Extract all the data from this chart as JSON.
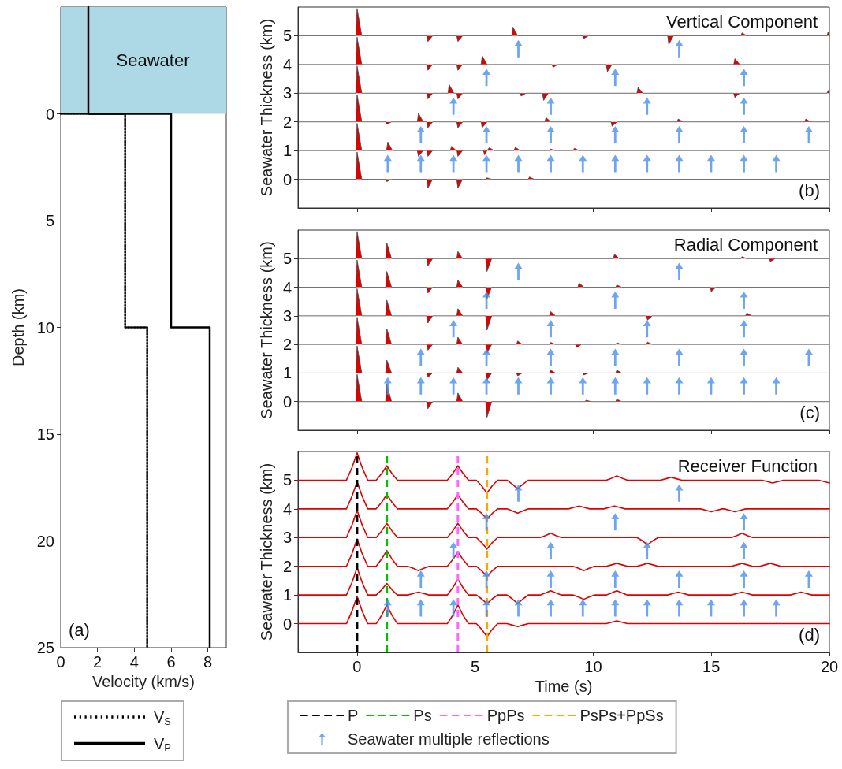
{
  "chart_data": [
    {
      "type": "line",
      "xlabel": "Velocity (km/s)",
      "ylabel": "Depth (km)",
      "xlim": [
        0,
        9
      ],
      "ylim": [
        25,
        -5
      ],
      "xticks": [
        0,
        2,
        4,
        6,
        8
      ],
      "yticks": [
        0,
        5,
        10,
        15,
        20,
        25
      ],
      "legend": "bottom",
      "annotations": [
        "(a)"
      ],
      "bands": [
        {
          "axis": "y",
          "from": -5,
          "to": 0,
          "label": "Seawater",
          "color": "#add8e6"
        }
      ],
      "series": [
        {
          "name": "V$_{S}$",
          "color": "#000000",
          "line_style": "dotted",
          "x": [
            0,
            3.5,
            3.5,
            4.7,
            4.7
          ],
          "values": [
            0,
            0,
            10,
            10,
            25
          ]
        },
        {
          "name": "V$_{P}$",
          "color": "#000000",
          "line_style": "solid",
          "x": [
            1.5,
            1.5,
            6,
            6,
            8.1,
            8.1
          ],
          "values": [
            -5,
            0,
            0,
            10,
            10,
            25
          ]
        }
      ]
    },
    {
      "type": "area",
      "title": "Vertical Component",
      "ylabel": "Seawater Thickness (km)",
      "xlim": [
        -2.5,
        20
      ],
      "ylim": [
        -1,
        6
      ],
      "xticks": [
        0,
        5,
        10,
        15,
        20
      ],
      "yticks": [
        0,
        1,
        2,
        3,
        4,
        5
      ],
      "tick_labels": "y",
      "annotations": [
        "(b)"
      ],
      "series": [
        {
          "color": "#e00000",
          "x": [
            -2.5,
            -0.05,
            0,
            0.2,
            1.21,
            1.26,
            1.46,
            2.95,
            3.0,
            3.2,
            4.22,
            4.27,
            4.47,
            5.45,
            5.5,
            5.7,
            7.25,
            7.3,
            7.5,
            20
          ],
          "values": [
            0,
            0,
            0.95,
            0,
            0,
            -0.08,
            0,
            0,
            -0.3,
            0,
            0,
            -0.3,
            0,
            0,
            0.05,
            0,
            0,
            0.08,
            0,
            0
          ]
        },
        {
          "color": "#e00000",
          "x": [
            -2.5,
            -0.05,
            0,
            0.2,
            1.25,
            1.3,
            1.5,
            2.55,
            2.6,
            2.8,
            2.95,
            3.0,
            3.2,
            3.95,
            4.0,
            4.2,
            4.23,
            4.27,
            4.47,
            5.35,
            5.4,
            5.5,
            5.6,
            5.8,
            6.65,
            6.7,
            6.9,
            8.15,
            8.2,
            8.4,
            9.15,
            9.2,
            9.4,
            20
          ],
          "values": [
            1,
            1,
            1.95,
            1,
            1,
            1.3,
            1,
            1,
            0.8,
            1,
            1,
            0.8,
            1,
            1,
            1.15,
            1,
            1,
            0.8,
            1,
            1,
            0.85,
            1,
            1.1,
            1,
            1,
            1.12,
            1,
            1,
            1.05,
            1,
            1,
            1.08,
            1,
            1
          ]
        },
        {
          "color": "#e00000",
          "x": [
            -2.5,
            -0.05,
            0,
            0.2,
            1.21,
            1.26,
            1.46,
            2.55,
            2.6,
            2.8,
            2.95,
            3.0,
            3.2,
            4.22,
            4.27,
            4.47,
            5.25,
            5.3,
            5.5,
            7.95,
            8.0,
            8.2,
            10.75,
            10.8,
            11.0,
            13.55,
            13.6,
            13.8,
            18.95,
            19.0,
            19.2,
            20
          ],
          "values": [
            2,
            2,
            2.95,
            2,
            2,
            1.92,
            2,
            2,
            2.3,
            2,
            2,
            1.8,
            2,
            2,
            1.8,
            2,
            2,
            1.8,
            2,
            2,
            2.15,
            2,
            2,
            1.85,
            2,
            2,
            2.1,
            2,
            2,
            2.1,
            2,
            2
          ]
        },
        {
          "color": "#e00000",
          "x": [
            -2.5,
            -0.05,
            0,
            0.2,
            2.95,
            3.0,
            3.2,
            3.85,
            3.9,
            4.1,
            4.22,
            4.27,
            4.47,
            6.9,
            6.95,
            7.15,
            7.85,
            7.9,
            8.1,
            11.85,
            11.9,
            12.1,
            15.95,
            16.0,
            16.2,
            19.9,
            19.95,
            20
          ],
          "values": [
            3,
            3,
            3.95,
            3,
            3,
            2.8,
            3,
            3,
            3.3,
            3,
            3,
            2.8,
            3,
            3,
            2.9,
            3,
            3,
            2.75,
            3,
            3,
            3.2,
            3,
            3,
            2.85,
            3,
            3,
            3.1,
            3
          ]
        },
        {
          "color": "#e00000",
          "x": [
            -2.5,
            -0.05,
            0,
            0.2,
            2.95,
            3.0,
            3.2,
            4.22,
            4.27,
            4.47,
            5.25,
            5.3,
            5.5,
            8.25,
            8.3,
            8.5,
            10.55,
            10.6,
            10.8,
            15.95,
            16.0,
            16.2,
            20
          ],
          "values": [
            4,
            4,
            4.95,
            4,
            4,
            3.8,
            4,
            4,
            3.8,
            4,
            4,
            4.3,
            4,
            4,
            3.9,
            4,
            4,
            3.75,
            4,
            4,
            4.2,
            4,
            4
          ]
        },
        {
          "color": "#e00000",
          "x": [
            -2.5,
            -0.05,
            0,
            0.2,
            2.95,
            3.0,
            3.2,
            4.22,
            4.27,
            4.47,
            6.55,
            6.6,
            6.8,
            9.55,
            9.6,
            9.8,
            13.15,
            13.2,
            13.4,
            16.25,
            16.3,
            16.5,
            19.9,
            19.95,
            20
          ],
          "values": [
            5,
            5,
            5.95,
            5,
            5,
            4.8,
            5,
            5,
            4.8,
            5,
            5,
            5.3,
            5,
            5,
            4.9,
            5,
            5,
            4.7,
            5,
            5,
            5.1,
            5,
            5,
            5.15,
            5
          ]
        },
        {
          "type": "scatter",
          "color": "#4a8ff0",
          "x": [
            6.83,
            13.64,
            5.48,
            10.93,
            16.38,
            4.08,
            8.2,
            12.28,
            16.38,
            2.7,
            5.48,
            8.2,
            10.93,
            13.64,
            16.38,
            19.13,
            1.3,
            2.7,
            4.08,
            5.48,
            6.83,
            8.2,
            9.56,
            10.93,
            12.28,
            13.64,
            14.99,
            16.38,
            17.75
          ],
          "values": [
            4.55,
            4.55,
            3.55,
            3.55,
            3.55,
            2.55,
            2.55,
            2.55,
            2.55,
            1.55,
            1.55,
            1.55,
            1.55,
            1.55,
            1.55,
            1.55,
            0.55,
            0.55,
            0.55,
            0.55,
            0.55,
            0.55,
            0.55,
            0.55,
            0.55,
            0.55,
            0.55,
            0.55,
            0.55
          ]
        }
      ]
    },
    {
      "type": "area",
      "title": "Radial Component",
      "ylabel": "Seawater Thickness (km)",
      "xlim": [
        -2.5,
        20
      ],
      "ylim": [
        -1,
        6
      ],
      "xticks": [
        0,
        5,
        10,
        15,
        20
      ],
      "yticks": [
        0,
        1,
        2,
        3,
        4,
        5
      ],
      "tick_labels": "y",
      "annotations": [
        "(c)"
      ],
      "series": [
        {
          "color": "#e00000",
          "x": [
            -2.5,
            -0.05,
            0,
            0.2,
            1.21,
            1.26,
            1.46,
            2.95,
            3.0,
            3.2,
            4.22,
            4.27,
            4.47,
            5.45,
            5.5,
            5.7,
            9.65,
            9.7,
            9.9,
            10.95,
            11.0,
            11.2,
            20
          ],
          "values": [
            0,
            0,
            0.95,
            0,
            0,
            0.6,
            0,
            0,
            -0.25,
            0,
            0,
            0.3,
            0,
            0,
            -0.55,
            0,
            0,
            0.05,
            0,
            0,
            0.08,
            0,
            0
          ]
        },
        {
          "color": "#e00000",
          "x": [
            -2.5,
            -0.05,
            0,
            0.2,
            1.21,
            1.26,
            1.46,
            2.95,
            3.0,
            3.2,
            4.22,
            4.27,
            4.47,
            5.45,
            5.5,
            5.7,
            6.75,
            6.8,
            7.0,
            8.15,
            8.2,
            8.4,
            9.55,
            9.6,
            9.8,
            10.95,
            11.0,
            11.2,
            20
          ],
          "values": [
            1,
            1,
            1.95,
            1,
            1,
            1.45,
            1,
            1,
            0.85,
            1,
            1,
            1.2,
            1,
            1,
            0.75,
            1,
            1,
            0.9,
            1,
            1,
            1.1,
            1,
            1,
            0.93,
            1,
            1,
            1.1,
            1,
            1
          ]
        },
        {
          "color": "#e00000",
          "x": [
            -2.5,
            -0.05,
            0,
            0.2,
            1.21,
            1.26,
            1.46,
            2.95,
            3.0,
            3.2,
            4.22,
            4.27,
            4.47,
            5.45,
            5.5,
            5.7,
            6.75,
            6.8,
            7.0,
            8.15,
            8.2,
            8.4,
            9.25,
            9.3,
            9.5,
            10.95,
            11.0,
            11.2,
            12.25,
            12.3,
            12.5,
            20
          ],
          "values": [
            2,
            2,
            2.95,
            2,
            2,
            2.55,
            2,
            2,
            1.8,
            2,
            2,
            2.25,
            2,
            2,
            1.7,
            2,
            2,
            2.12,
            2,
            2,
            2.07,
            2,
            2,
            1.9,
            2,
            2,
            2.06,
            2,
            2,
            2.08,
            2,
            2
          ]
        },
        {
          "color": "#e00000",
          "x": [
            -2.5,
            -0.05,
            0,
            0.2,
            1.21,
            1.26,
            1.46,
            2.95,
            3.0,
            3.2,
            4.22,
            4.27,
            4.47,
            5.45,
            5.5,
            5.7,
            8.15,
            8.2,
            8.4,
            12.25,
            12.3,
            12.5,
            16.45,
            16.5,
            16.7,
            20
          ],
          "values": [
            3,
            3,
            3.95,
            3,
            3,
            3.55,
            3,
            3,
            2.75,
            3,
            3,
            3.25,
            3,
            3,
            2.5,
            3,
            3,
            3.15,
            3,
            3,
            2.85,
            3,
            3,
            3.1,
            3,
            3
          ]
        },
        {
          "color": "#e00000",
          "x": [
            -2.5,
            -0.05,
            0,
            0.2,
            1.21,
            1.26,
            1.46,
            2.95,
            3.0,
            3.2,
            4.22,
            4.27,
            4.47,
            5.45,
            5.5,
            5.7,
            9.35,
            9.4,
            9.6,
            10.95,
            11.0,
            11.2,
            14.95,
            15.0,
            15.2,
            20
          ],
          "values": [
            4,
            4,
            4.95,
            4,
            4,
            4.55,
            4,
            4,
            3.8,
            4,
            4,
            4.25,
            4,
            4,
            3.6,
            4,
            4,
            4.15,
            4,
            4,
            4.08,
            4,
            4,
            3.85,
            4,
            4
          ]
        },
        {
          "color": "#e00000",
          "x": [
            -2.5,
            -0.05,
            0,
            0.2,
            1.21,
            1.26,
            1.46,
            2.95,
            3.0,
            3.2,
            4.22,
            4.27,
            4.47,
            5.45,
            5.5,
            5.7,
            10.85,
            10.9,
            11.1,
            16.25,
            16.3,
            16.5,
            17.45,
            17.5,
            17.7,
            20
          ],
          "values": [
            5,
            5,
            5.95,
            5,
            5,
            5.55,
            5,
            5,
            4.75,
            5,
            5,
            5.25,
            5,
            5,
            4.55,
            5,
            5,
            5.15,
            5,
            5,
            5.07,
            5,
            5,
            4.9,
            5,
            5
          ]
        },
        {
          "type": "scatter",
          "color": "#4a8ff0",
          "x": [
            6.83,
            13.64,
            5.48,
            10.93,
            16.38,
            4.08,
            8.2,
            12.28,
            16.38,
            2.7,
            5.48,
            8.2,
            10.93,
            13.64,
            16.38,
            19.13,
            1.3,
            2.7,
            4.08,
            5.48,
            6.83,
            8.2,
            9.56,
            10.93,
            12.28,
            13.64,
            14.99,
            16.38,
            17.75
          ],
          "values": [
            4.55,
            4.55,
            3.55,
            3.55,
            3.55,
            2.55,
            2.55,
            2.55,
            2.55,
            1.55,
            1.55,
            1.55,
            1.55,
            1.55,
            1.55,
            1.55,
            0.55,
            0.55,
            0.55,
            0.55,
            0.55,
            0.55,
            0.55,
            0.55,
            0.55,
            0.55,
            0.55,
            0.55,
            0.55
          ]
        }
      ]
    },
    {
      "type": "line",
      "title": "Receiver Function",
      "xlabel": "Time (s)",
      "ylabel": "Seawater Thickness (km)",
      "xlim": [
        -2.5,
        20
      ],
      "ylim": [
        -1,
        6
      ],
      "xticks": [
        0,
        5,
        10,
        15,
        20
      ],
      "yticks": [
        0,
        1,
        2,
        3,
        4,
        5
      ],
      "legend": "bottom",
      "annotations": [
        "(d)"
      ],
      "ref_lines": [
        {
          "axis": "x",
          "value": 0,
          "label": "P",
          "color": "#000000",
          "line_style": "dashed"
        },
        {
          "axis": "x",
          "value": 1.26,
          "label": "Ps",
          "color": "#00c000",
          "line_style": "dashed"
        },
        {
          "axis": "x",
          "value": 4.27,
          "label": "PpPs",
          "color": "#ff66ff",
          "line_style": "dashed"
        },
        {
          "axis": "x",
          "value": 5.5,
          "label": "PsPs+PpSs",
          "color": "#ffa500",
          "line_style": "dashed"
        }
      ],
      "series": [
        {
          "color": "#e00000",
          "x": [
            -2.5,
            -0.45,
            -0.22,
            0,
            0.22,
            0.45,
            0.81,
            1.04,
            1.26,
            1.48,
            1.71,
            3.82,
            4.05,
            4.27,
            4.49,
            4.72,
            5.05,
            5.28,
            5.5,
            5.72,
            5.95,
            6.35,
            6.58,
            6.8,
            7.02,
            7.25,
            10.55,
            10.78,
            11.0,
            11.22,
            11.45,
            20
          ],
          "values": [
            0,
            0,
            0.43,
            0.95,
            0.43,
            0,
            0,
            0.29,
            0.65,
            0.29,
            0,
            0,
            0.29,
            0.65,
            0.29,
            0,
            0,
            -0.2,
            -0.45,
            -0.2,
            0,
            0,
            -0.05,
            -0.1,
            -0.05,
            0,
            0,
            0.05,
            0.1,
            0.05,
            0,
            0
          ]
        },
        {
          "color": "#e00000",
          "x": [
            -2.5,
            -0.45,
            -0.22,
            0,
            0.22,
            0.45,
            0.81,
            1.04,
            1.26,
            1.48,
            1.71,
            2.15,
            2.38,
            2.6,
            2.82,
            3.05,
            3.82,
            4.05,
            4.27,
            4.49,
            4.72,
            5.05,
            5.28,
            5.5,
            5.72,
            5.95,
            6.35,
            6.58,
            6.8,
            7.02,
            7.25,
            7.75,
            7.98,
            8.2,
            8.42,
            8.65,
            9.15,
            9.38,
            9.6,
            9.82,
            10.05,
            10.55,
            10.78,
            11.0,
            11.22,
            11.45,
            13.15,
            13.38,
            13.6,
            13.82,
            14.05,
            15.85,
            16.08,
            16.3,
            16.52,
            16.75,
            18.35,
            18.58,
            18.8,
            19.02,
            19.25,
            20
          ],
          "values": [
            1,
            1,
            1.43,
            1.95,
            1.43,
            1,
            1,
            1.18,
            1.4,
            1.18,
            1,
            1,
            1.05,
            1.1,
            1.05,
            1,
            1,
            1.25,
            1.55,
            1.25,
            1,
            1,
            0.86,
            0.7,
            0.86,
            1,
            1,
            0.86,
            0.7,
            0.86,
            1,
            1,
            1.07,
            1.15,
            1.07,
            1,
            1,
            0.93,
            0.85,
            0.93,
            1,
            1,
            1.07,
            1.15,
            1.07,
            1,
            1,
            1.05,
            1.1,
            1.05,
            1,
            1,
            1.05,
            1.1,
            1.05,
            1,
            1,
            1.05,
            1.1,
            1.05,
            1,
            1
          ]
        },
        {
          "color": "#e00000",
          "x": [
            -2.5,
            -0.45,
            -0.22,
            0,
            0.22,
            0.45,
            0.81,
            1.04,
            1.26,
            1.48,
            1.71,
            2.15,
            2.38,
            2.6,
            2.82,
            3.05,
            3.82,
            4.05,
            4.27,
            4.49,
            4.72,
            5.05,
            5.28,
            5.5,
            5.72,
            5.95,
            9.15,
            9.38,
            9.6,
            9.82,
            10.05,
            10.55,
            10.78,
            11.0,
            11.22,
            11.45,
            11.85,
            12.08,
            12.3,
            12.52,
            12.75,
            15.85,
            16.08,
            16.3,
            16.52,
            16.75,
            17.05,
            17.28,
            17.5,
            17.72,
            17.95,
            20
          ],
          "values": [
            2,
            2,
            2.43,
            2.95,
            2.43,
            2,
            2,
            2.25,
            2.55,
            2.25,
            2,
            2,
            1.93,
            1.85,
            1.93,
            2,
            2,
            2.23,
            2.5,
            2.23,
            2,
            2,
            1.84,
            1.65,
            1.84,
            2,
            2,
            1.93,
            1.85,
            1.93,
            2,
            2,
            2.05,
            2.1,
            2.05,
            2,
            2,
            2.05,
            2.1,
            2.05,
            2,
            2,
            2.05,
            2.1,
            2.05,
            2,
            2,
            2.05,
            2.1,
            2.05,
            2,
            2
          ]
        },
        {
          "color": "#e00000",
          "x": [
            -2.5,
            -0.45,
            -0.22,
            0,
            0.22,
            0.45,
            0.81,
            1.04,
            1.26,
            1.48,
            1.71,
            3.82,
            4.05,
            4.27,
            4.49,
            4.72,
            5.05,
            5.28,
            5.5,
            5.72,
            5.95,
            7.75,
            7.98,
            8.2,
            8.42,
            8.65,
            11.85,
            12.08,
            12.3,
            12.52,
            12.75,
            15.85,
            16.08,
            16.3,
            16.52,
            16.75,
            20
          ],
          "values": [
            3,
            3,
            3.43,
            3.95,
            3.43,
            3,
            3,
            3.23,
            3.5,
            3.23,
            3,
            3,
            3.23,
            3.5,
            3.23,
            3,
            3,
            2.82,
            2.6,
            2.82,
            3,
            3,
            3.07,
            3.15,
            3.07,
            3,
            3,
            2.89,
            2.75,
            2.89,
            3,
            3,
            3.07,
            3.15,
            3.07,
            3,
            3
          ]
        },
        {
          "color": "#e00000",
          "x": [
            -2.5,
            -0.45,
            -0.22,
            0,
            0.22,
            0.45,
            0.81,
            1.04,
            1.26,
            1.48,
            1.71,
            3.82,
            4.05,
            4.27,
            4.49,
            4.72,
            5.05,
            5.28,
            5.5,
            5.72,
            5.95,
            6.35,
            6.58,
            6.8,
            7.02,
            7.25,
            8.95,
            9.18,
            9.4,
            9.62,
            9.85,
            10.45,
            10.68,
            10.9,
            11.12,
            11.35,
            14.55,
            14.78,
            15.0,
            15.22,
            15.45,
            15.55,
            15.78,
            16.0,
            16.22,
            16.45,
            20
          ],
          "values": [
            4,
            4,
            4.43,
            4.95,
            4.43,
            4,
            4,
            4.23,
            4.5,
            4.23,
            4,
            4,
            4.23,
            4.5,
            4.23,
            4,
            4,
            3.84,
            3.65,
            3.84,
            4,
            4,
            3.93,
            3.85,
            3.93,
            4,
            4,
            4.05,
            4.1,
            4.05,
            4,
            4,
            4.05,
            4.1,
            4.05,
            4,
            4,
            3.95,
            3.9,
            3.95,
            4,
            4,
            3.95,
            3.9,
            3.95,
            4,
            4
          ]
        },
        {
          "color": "#e00000",
          "x": [
            -2.5,
            -0.45,
            -0.22,
            0,
            0.22,
            0.45,
            0.81,
            1.04,
            1.26,
            1.48,
            1.71,
            3.82,
            4.05,
            4.27,
            4.49,
            4.72,
            5.05,
            5.28,
            5.5,
            5.72,
            5.95,
            6.35,
            6.58,
            6.8,
            7.02,
            7.25,
            10.55,
            10.78,
            11.0,
            11.22,
            11.45,
            12.85,
            13.08,
            13.3,
            13.52,
            13.75,
            17.15,
            17.38,
            17.6,
            17.82,
            18.05,
            19.55,
            19.78,
            20
          ],
          "values": [
            5,
            5,
            5.43,
            5.95,
            5.43,
            5,
            5,
            5.23,
            5.5,
            5.23,
            5,
            5,
            5.23,
            5.5,
            5.23,
            5,
            5,
            4.8,
            4.55,
            4.8,
            5,
            5,
            4.86,
            4.7,
            4.86,
            5,
            5,
            5.07,
            5.15,
            5.07,
            5,
            5,
            5.05,
            5.1,
            5.05,
            5,
            5,
            4.95,
            4.9,
            4.95,
            5,
            5,
            4.95,
            4.9
          ]
        },
        {
          "type": "scatter",
          "name": "Seawater multiple reflections",
          "color": "#4a8ff0",
          "x": [
            6.83,
            13.64,
            5.48,
            10.93,
            16.38,
            4.08,
            8.2,
            12.28,
            16.38,
            2.7,
            5.48,
            8.2,
            10.93,
            13.64,
            16.38,
            19.13,
            1.3,
            2.7,
            4.08,
            5.48,
            6.83,
            8.2,
            9.56,
            10.93,
            12.28,
            13.64,
            14.99,
            16.38,
            17.75
          ],
          "values": [
            4.55,
            4.55,
            3.55,
            3.55,
            3.55,
            2.55,
            2.55,
            2.55,
            2.55,
            1.55,
            1.55,
            1.55,
            1.55,
            1.55,
            1.55,
            1.55,
            0.55,
            0.55,
            0.55,
            0.55,
            0.55,
            0.55,
            0.55,
            0.55,
            0.55,
            0.55,
            0.55,
            0.55,
            0.55
          ]
        }
      ]
    }
  ]
}
